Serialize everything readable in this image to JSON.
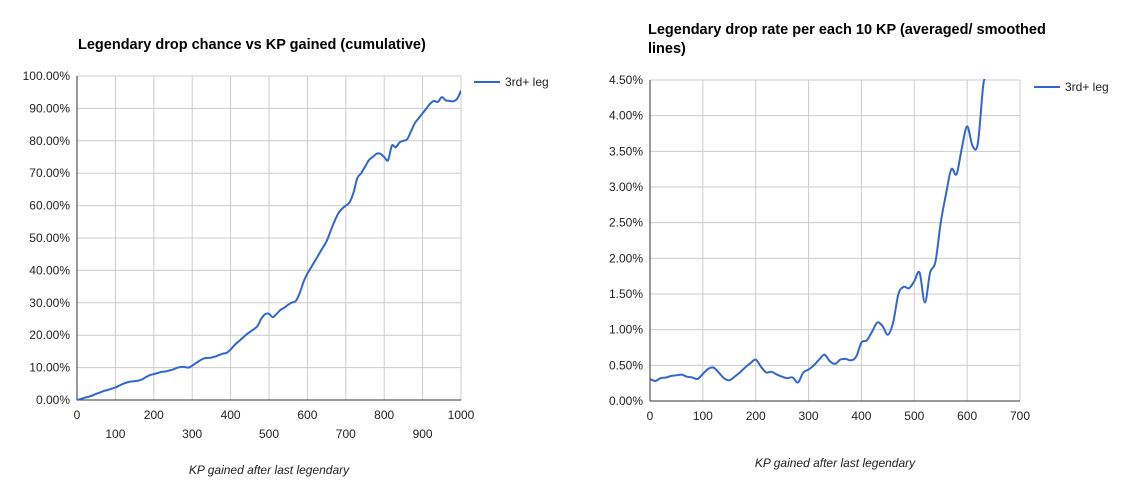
{
  "chart_data": [
    {
      "type": "line",
      "title": "Legendary drop chance vs KP gained (cumulative)",
      "xlabel": "KP gained after last legendary",
      "ylabel": "",
      "xlim": [
        0,
        1000
      ],
      "ylim": [
        0,
        100
      ],
      "x_ticks": [
        "0",
        "100",
        "200",
        "300",
        "400",
        "500",
        "600",
        "700",
        "800",
        "900",
        "1000"
      ],
      "y_ticks": [
        "0.00%",
        "10.00%",
        "20.00%",
        "30.00%",
        "40.00%",
        "50.00%",
        "60.00%",
        "70.00%",
        "80.00%",
        "90.00%",
        "100.00%"
      ],
      "grid": true,
      "legend_position": "right",
      "series": [
        {
          "name": "3rd+ leg",
          "color": "#3366cc",
          "x": [
            0,
            10,
            20,
            30,
            40,
            50,
            60,
            70,
            80,
            90,
            100,
            110,
            120,
            130,
            140,
            150,
            160,
            170,
            180,
            190,
            200,
            210,
            220,
            230,
            240,
            250,
            260,
            270,
            280,
            290,
            300,
            310,
            320,
            330,
            340,
            350,
            360,
            370,
            380,
            390,
            400,
            410,
            420,
            430,
            440,
            450,
            460,
            470,
            480,
            490,
            500,
            510,
            520,
            530,
            540,
            550,
            560,
            570,
            580,
            590,
            600,
            610,
            620,
            630,
            640,
            650,
            660,
            670,
            680,
            690,
            700,
            710,
            720,
            730,
            740,
            750,
            760,
            770,
            780,
            790,
            800,
            810,
            820,
            830,
            840,
            850,
            860,
            870,
            880,
            890,
            900,
            910,
            920,
            930,
            940,
            950,
            960,
            970,
            980,
            990,
            1000
          ],
          "y": [
            0,
            0.3,
            0.7,
            1.0,
            1.4,
            1.9,
            2.3,
            2.8,
            3.1,
            3.5,
            3.9,
            4.4,
            5.0,
            5.4,
            5.7,
            5.8,
            6.0,
            6.4,
            7.1,
            7.7,
            8.0,
            8.3,
            8.7,
            8.8,
            9.1,
            9.4,
            9.9,
            10.2,
            10.2,
            10.0,
            10.6,
            11.4,
            12.2,
            12.8,
            13.0,
            13.1,
            13.4,
            13.9,
            14.3,
            14.6,
            15.6,
            16.9,
            18.0,
            19.0,
            20.1,
            21.0,
            21.8,
            22.8,
            25.1,
            26.5,
            26.6,
            25.6,
            26.6,
            27.8,
            28.5,
            29.4,
            30.1,
            30.6,
            33.0,
            36.5,
            39.0,
            41.0,
            43.0,
            45.0,
            47.0,
            49.0,
            52.0,
            55.0,
            57.5,
            59.0,
            60.0,
            61.0,
            64.0,
            68.5,
            70.0,
            72.0,
            74.0,
            75.0,
            76.0,
            76.0,
            75.0,
            74.0,
            78.5,
            78.0,
            79.5,
            80.0,
            80.5,
            83.0,
            85.5,
            87.0,
            88.5,
            90.0,
            91.5,
            92.3,
            92.0,
            93.5,
            92.5,
            92.3,
            92.2,
            93.0,
            95.5
          ]
        }
      ]
    },
    {
      "type": "line",
      "title": "Legendary drop rate per each 10 KP (averaged/ smoothed lines)",
      "xlabel": "KP gained after last legendary",
      "ylabel": "",
      "xlim": [
        0,
        700
      ],
      "ylim": [
        0,
        4.5
      ],
      "x_ticks": [
        "0",
        "100",
        "200",
        "300",
        "400",
        "500",
        "600",
        "700"
      ],
      "y_ticks": [
        "0.00%",
        "0.50%",
        "1.00%",
        "1.50%",
        "2.00%",
        "2.50%",
        "3.00%",
        "3.50%",
        "4.00%",
        "4.50%"
      ],
      "grid": true,
      "legend_position": "right",
      "series": [
        {
          "name": "3rd+ leg",
          "color": "#3366cc",
          "x": [
            0,
            10,
            20,
            30,
            40,
            50,
            60,
            70,
            80,
            90,
            100,
            110,
            120,
            130,
            140,
            150,
            160,
            170,
            180,
            190,
            200,
            210,
            220,
            230,
            240,
            250,
            260,
            270,
            280,
            290,
            300,
            310,
            320,
            330,
            340,
            350,
            360,
            370,
            380,
            390,
            400,
            410,
            420,
            430,
            440,
            450,
            460,
            470,
            480,
            490,
            500,
            510,
            520,
            530,
            540,
            550,
            560,
            570,
            580,
            590,
            600,
            610,
            620,
            630,
            635
          ],
          "y": [
            0.31,
            0.28,
            0.32,
            0.33,
            0.35,
            0.36,
            0.37,
            0.34,
            0.33,
            0.31,
            0.38,
            0.45,
            0.47,
            0.4,
            0.32,
            0.29,
            0.34,
            0.4,
            0.47,
            0.53,
            0.58,
            0.48,
            0.4,
            0.41,
            0.37,
            0.34,
            0.32,
            0.33,
            0.26,
            0.4,
            0.44,
            0.5,
            0.58,
            0.65,
            0.56,
            0.52,
            0.58,
            0.59,
            0.57,
            0.62,
            0.82,
            0.85,
            0.97,
            1.1,
            1.05,
            0.93,
            1.1,
            1.5,
            1.6,
            1.58,
            1.68,
            1.8,
            1.38,
            1.8,
            1.95,
            2.5,
            2.9,
            3.25,
            3.18,
            3.55,
            3.85,
            3.58,
            3.6,
            4.4,
            4.55
          ]
        }
      ]
    }
  ]
}
